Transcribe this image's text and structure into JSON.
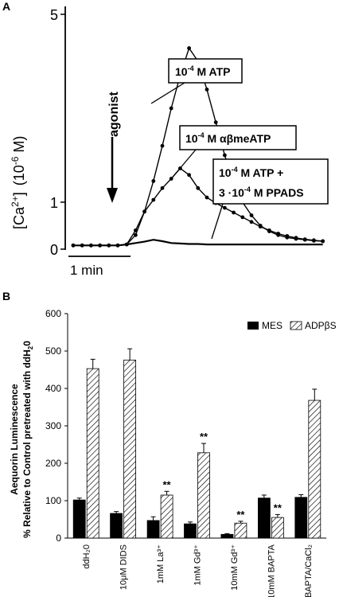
{
  "chart_data": [
    {
      "panel_label": "A",
      "type": "line",
      "ylabel_main": "[Ca",
      "ylabel_sup": "2+",
      "ylabel_close": "]",
      "ylabel_units_open": "(10",
      "ylabel_units_exp": "-6",
      "ylabel_units_close": " M)",
      "y_ticks": [
        "0",
        "1",
        "5"
      ],
      "ylim": [
        0,
        5
      ],
      "scale_bar_label": "1 min",
      "agonist_label": "agonist",
      "series": [
        {
          "label_base": "10",
          "label_exp": "-4",
          "label_rest": " M ATP",
          "x": [
            0,
            1,
            2,
            3,
            4,
            5,
            6,
            7,
            8,
            9,
            10,
            11,
            12,
            13,
            14,
            15,
            16,
            17,
            18,
            19,
            20,
            21,
            22,
            23,
            24,
            25,
            26,
            27,
            28
          ],
          "values": [
            0.08,
            0.08,
            0.08,
            0.08,
            0.08,
            0.08,
            0.1,
            0.3,
            0.8,
            1.45,
            2.2,
            3.0,
            3.7,
            4.28,
            4.0,
            3.4,
            2.7,
            2.0,
            1.4,
            1.0,
            0.72,
            0.5,
            0.38,
            0.3,
            0.25,
            0.22,
            0.2,
            0.18,
            0.17
          ]
        },
        {
          "label_base": "10",
          "label_exp": "-4",
          "label_rest": " M αβmeATP",
          "x": [
            0,
            1,
            2,
            3,
            4,
            5,
            6,
            7,
            8,
            9,
            10,
            11,
            12,
            13,
            14,
            15,
            16,
            17,
            18,
            19,
            20,
            21,
            22,
            23,
            24,
            25,
            26,
            27,
            28
          ],
          "values": [
            0.08,
            0.08,
            0.08,
            0.08,
            0.08,
            0.08,
            0.1,
            0.4,
            0.8,
            1.05,
            1.3,
            1.5,
            1.72,
            1.58,
            1.3,
            1.1,
            0.98,
            0.88,
            0.78,
            0.68,
            0.58,
            0.48,
            0.4,
            0.33,
            0.28,
            0.24,
            0.21,
            0.19,
            0.17
          ]
        },
        {
          "label_line1_base": "10",
          "label_line1_exp": "-4",
          "label_line1_rest": " M ATP +",
          "label_line2": "3 ·10",
          "label_line2_exp": "-4",
          "label_line2_rest": " M PPADS",
          "x": [
            0,
            1,
            2,
            3,
            4,
            5,
            6,
            7,
            8,
            9,
            10,
            11,
            12,
            13,
            14,
            15,
            16,
            17,
            18,
            19,
            20,
            21,
            22,
            23,
            24,
            25,
            26,
            27,
            28
          ],
          "values": [
            0.08,
            0.08,
            0.08,
            0.08,
            0.08,
            0.08,
            0.1,
            0.13,
            0.16,
            0.2,
            0.17,
            0.13,
            0.12,
            0.11,
            0.11,
            0.1,
            0.1,
            0.1,
            0.1,
            0.1,
            0.1,
            0.1,
            0.1,
            0.1,
            0.1,
            0.1,
            0.1,
            0.1,
            0.1
          ]
        }
      ]
    },
    {
      "panel_label": "B",
      "type": "bar",
      "ylabel_line1": "Aequorin Luminescence",
      "ylabel_line2": "% Relative to Control pretreated with ddH",
      "ylabel_line2_sub": "2",
      "ylabel_line2_end": "0",
      "ylim": [
        0,
        600
      ],
      "yticks": [
        "0",
        "100",
        "200",
        "300",
        "400",
        "500",
        "600"
      ],
      "legend_position": "top-right",
      "categories": [
        "ddH₂0",
        "10μM DIDS",
        "1mM La³⁺",
        "1mM Gd³⁺",
        "10mM Gd³⁺",
        "10mM BAPTA",
        "BAPTA/CaCl₂"
      ],
      "series": [
        {
          "name": "MES",
          "fill": "#000000",
          "values": [
            102,
            66,
            47,
            38,
            10,
            107,
            109
          ],
          "errors": [
            5,
            5,
            10,
            5,
            2,
            8,
            7
          ]
        },
        {
          "name": "ADPβS",
          "fill": "hatch",
          "values": [
            453,
            476,
            115,
            228,
            40,
            55,
            368
          ],
          "errors": [
            25,
            30,
            10,
            25,
            5,
            8,
            30
          ]
        }
      ],
      "significance": [
        {
          "category_index": 2,
          "series_index": 1,
          "label": "**"
        },
        {
          "category_index": 3,
          "series_index": 1,
          "label": "**"
        },
        {
          "category_index": 4,
          "series_index": 1,
          "label": "**"
        },
        {
          "category_index": 5,
          "series_index": 1,
          "label": "**"
        }
      ]
    }
  ]
}
